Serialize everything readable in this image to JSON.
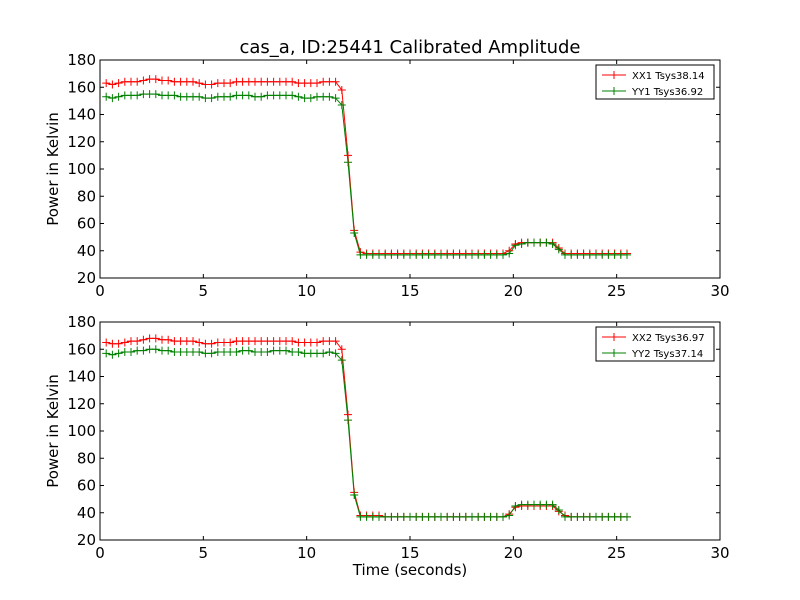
{
  "figure": {
    "title": "cas_a, ID:25441 Calibrated Amplitude"
  },
  "chart_data": [
    {
      "type": "line",
      "title": "cas_a, ID:25441 Calibrated Amplitude",
      "xlabel": "",
      "ylabel": "Power in Kelvin",
      "xlim": [
        0,
        30
      ],
      "ylim": [
        20,
        180
      ],
      "xticks": [
        0,
        5,
        10,
        15,
        20,
        25,
        30
      ],
      "yticks": [
        20,
        40,
        60,
        80,
        100,
        120,
        140,
        160,
        180
      ],
      "grid": false,
      "legend_position": "top-right",
      "x": [
        0.3,
        0.6,
        0.9,
        1.2,
        1.5,
        1.8,
        2.1,
        2.4,
        2.7,
        3.0,
        3.3,
        3.6,
        3.9,
        4.2,
        4.5,
        4.8,
        5.1,
        5.4,
        5.7,
        6.0,
        6.3,
        6.6,
        6.9,
        7.2,
        7.5,
        7.8,
        8.1,
        8.4,
        8.7,
        9.0,
        9.3,
        9.6,
        9.9,
        10.2,
        10.5,
        10.8,
        11.1,
        11.4,
        11.7,
        12.0,
        12.3,
        12.6,
        12.9,
        13.2,
        13.5,
        13.8,
        14.1,
        14.4,
        14.7,
        15.0,
        15.3,
        15.6,
        15.9,
        16.2,
        16.5,
        16.8,
        17.1,
        17.4,
        17.7,
        18.0,
        18.3,
        18.6,
        18.9,
        19.2,
        19.5,
        19.8,
        20.1,
        20.4,
        20.7,
        21.0,
        21.3,
        21.6,
        21.9,
        22.2,
        22.5,
        22.8,
        23.1,
        23.4,
        23.7,
        24.0,
        24.3,
        24.6,
        24.9,
        25.2,
        25.5
      ],
      "series": [
        {
          "name": "XX1 Tsys38.14",
          "color": "#ff0000",
          "values": [
            163,
            162,
            163,
            164,
            164,
            164,
            165,
            166,
            166,
            165,
            165,
            164,
            164,
            164,
            164,
            163,
            162,
            162,
            163,
            163,
            163,
            164,
            164,
            164,
            164,
            164,
            164,
            164,
            164,
            164,
            164,
            163,
            163,
            163,
            163,
            164,
            164,
            164,
            158,
            110,
            55,
            39,
            38,
            38,
            38,
            38,
            38,
            38,
            38,
            38,
            38,
            38,
            38,
            38,
            38,
            38,
            38,
            38,
            38,
            38,
            38,
            38,
            38,
            38,
            38,
            40,
            45,
            46,
            46,
            46,
            46,
            46,
            46,
            42,
            38,
            38,
            38,
            38,
            38,
            38,
            38,
            38,
            38,
            38,
            38
          ]
        },
        {
          "name": "YY1 Tsys36.92",
          "color": "#008000",
          "values": [
            153,
            152,
            153,
            154,
            154,
            154,
            155,
            155,
            155,
            154,
            154,
            154,
            153,
            153,
            153,
            153,
            152,
            152,
            153,
            153,
            153,
            154,
            154,
            154,
            153,
            153,
            154,
            154,
            154,
            154,
            154,
            153,
            152,
            152,
            153,
            153,
            153,
            152,
            147,
            105,
            53,
            37,
            37,
            37,
            37,
            37,
            37,
            37,
            37,
            37,
            37,
            37,
            37,
            37,
            37,
            37,
            37,
            37,
            37,
            37,
            37,
            37,
            37,
            37,
            37,
            38,
            44,
            45,
            46,
            46,
            46,
            46,
            45,
            41,
            37,
            37,
            37,
            37,
            37,
            37,
            37,
            37,
            37,
            37,
            37
          ]
        }
      ]
    },
    {
      "type": "line",
      "title": "",
      "xlabel": "Time (seconds)",
      "ylabel": "Power in Kelvin",
      "xlim": [
        0,
        30
      ],
      "ylim": [
        20,
        180
      ],
      "xticks": [
        0,
        5,
        10,
        15,
        20,
        25,
        30
      ],
      "yticks": [
        20,
        40,
        60,
        80,
        100,
        120,
        140,
        160,
        180
      ],
      "grid": false,
      "legend_position": "top-right",
      "x": [
        0.3,
        0.6,
        0.9,
        1.2,
        1.5,
        1.8,
        2.1,
        2.4,
        2.7,
        3.0,
        3.3,
        3.6,
        3.9,
        4.2,
        4.5,
        4.8,
        5.1,
        5.4,
        5.7,
        6.0,
        6.3,
        6.6,
        6.9,
        7.2,
        7.5,
        7.8,
        8.1,
        8.4,
        8.7,
        9.0,
        9.3,
        9.6,
        9.9,
        10.2,
        10.5,
        10.8,
        11.1,
        11.4,
        11.7,
        12.0,
        12.3,
        12.6,
        12.9,
        13.2,
        13.5,
        13.8,
        14.1,
        14.4,
        14.7,
        15.0,
        15.3,
        15.6,
        15.9,
        16.2,
        16.5,
        16.8,
        17.1,
        17.4,
        17.7,
        18.0,
        18.3,
        18.6,
        18.9,
        19.2,
        19.5,
        19.8,
        20.1,
        20.4,
        20.7,
        21.0,
        21.3,
        21.6,
        21.9,
        22.2,
        22.5,
        22.8,
        23.1,
        23.4,
        23.7,
        24.0,
        24.3,
        24.6,
        24.9,
        25.2,
        25.5
      ],
      "series": [
        {
          "name": "XX2 Tsys36.97",
          "color": "#ff0000",
          "values": [
            165,
            164,
            164,
            165,
            166,
            166,
            167,
            168,
            168,
            167,
            167,
            166,
            166,
            166,
            166,
            165,
            164,
            164,
            165,
            165,
            165,
            166,
            166,
            166,
            166,
            166,
            166,
            166,
            166,
            166,
            166,
            165,
            165,
            165,
            165,
            166,
            166,
            166,
            160,
            112,
            55,
            38,
            38,
            38,
            38,
            37,
            37,
            37,
            37,
            37,
            37,
            37,
            37,
            37,
            37,
            37,
            37,
            37,
            37,
            37,
            37,
            37,
            37,
            37,
            37,
            39,
            44,
            45,
            45,
            45,
            45,
            45,
            45,
            41,
            38,
            37,
            37,
            37,
            37,
            37,
            37,
            37,
            37,
            37,
            37
          ]
        },
        {
          "name": "YY2 Tsys37.14",
          "color": "#008000",
          "values": [
            157,
            156,
            157,
            158,
            158,
            159,
            159,
            160,
            160,
            159,
            159,
            158,
            158,
            158,
            158,
            158,
            157,
            157,
            158,
            158,
            158,
            158,
            159,
            159,
            158,
            158,
            158,
            159,
            159,
            159,
            158,
            158,
            157,
            157,
            157,
            157,
            158,
            157,
            152,
            108,
            53,
            37,
            37,
            37,
            37,
            37,
            37,
            37,
            37,
            37,
            37,
            37,
            37,
            37,
            37,
            37,
            37,
            37,
            37,
            37,
            37,
            37,
            37,
            37,
            37,
            38,
            45,
            46,
            46,
            46,
            46,
            46,
            46,
            42,
            37,
            37,
            37,
            37,
            37,
            37,
            37,
            37,
            37,
            37,
            37
          ]
        }
      ]
    }
  ]
}
